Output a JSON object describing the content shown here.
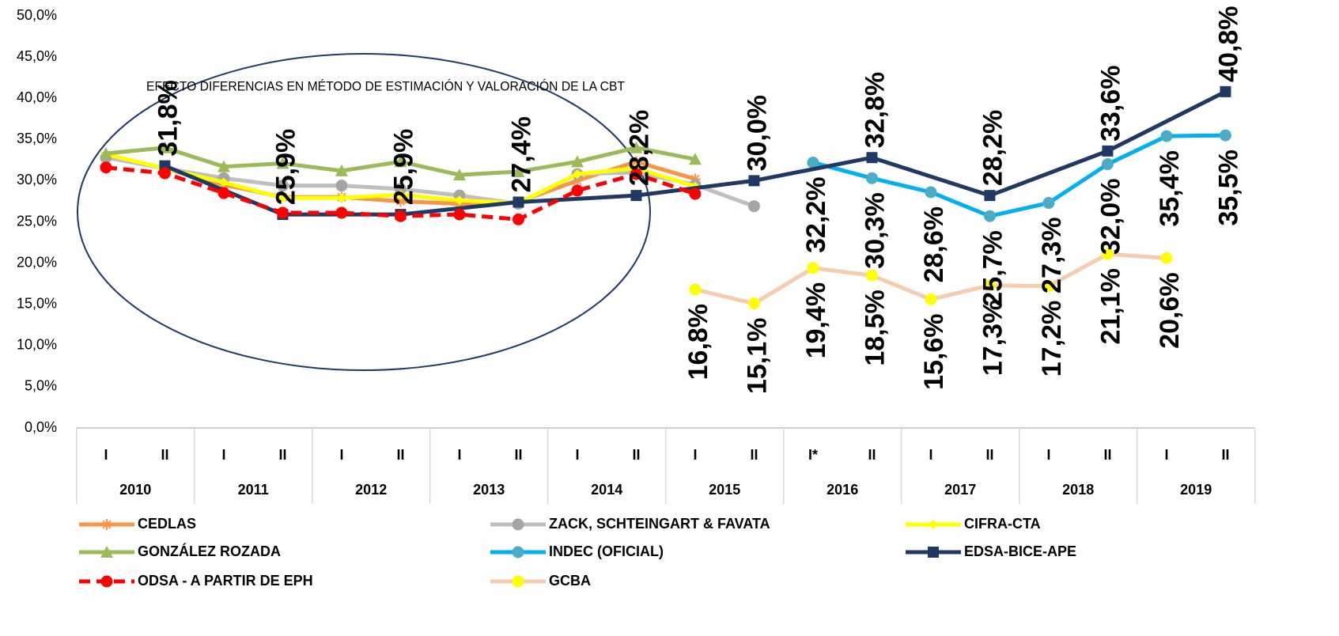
{
  "chart_data": {
    "type": "line",
    "annotation": "EFECTO DIFERENCIAS EN MÉTODO DE ESTIMACIÓN Y VALORACIÓN DE LA CBT",
    "categories": [
      "I",
      "II",
      "I",
      "II",
      "I",
      "II",
      "I",
      "II",
      "I",
      "II",
      "I",
      "II",
      "I*",
      "II",
      "I",
      "II",
      "I",
      "II",
      "I",
      "II"
    ],
    "groups": [
      "2010",
      "2011",
      "2012",
      "2013",
      "2014",
      "2015",
      "2016",
      "2017",
      "2018",
      "2019"
    ],
    "ylim": [
      0,
      50
    ],
    "yticks": [
      {
        "value": 0,
        "label": "0,0%"
      },
      {
        "value": 5,
        "label": "5,0%"
      },
      {
        "value": 10,
        "label": "10,0%"
      },
      {
        "value": 15,
        "label": "15,0%"
      },
      {
        "value": 20,
        "label": "20,0%"
      },
      {
        "value": 25,
        "label": "25,0%"
      },
      {
        "value": 30,
        "label": "30,0%"
      },
      {
        "value": 35,
        "label": "35,0%"
      },
      {
        "value": 40,
        "label": "40,0%"
      },
      {
        "value": 45,
        "label": "45,0%"
      },
      {
        "value": 50,
        "label": "50,0%"
      }
    ],
    "grid": false,
    "series": [
      {
        "name": "CEDLAS",
        "color": "#f79646",
        "marker": "asterisk",
        "marker_color": "#f79646",
        "values": [
          33.0,
          31.5,
          29.5,
          28.0,
          28.0,
          27.5,
          27.2,
          27.4,
          30.0,
          32.3,
          30.2,
          null,
          null,
          null,
          null,
          null,
          null,
          null,
          null,
          null
        ]
      },
      {
        "name": "ZACK, SCHTEINGART & FAVATA",
        "color": "#bfbfbf",
        "marker": "circle",
        "marker_color": "#a5a5a5",
        "values": [
          32.8,
          31.5,
          30.3,
          29.4,
          29.4,
          29.0,
          28.2,
          27.2,
          30.8,
          31.0,
          29.5,
          26.9,
          null,
          null,
          null,
          null,
          null,
          null,
          null,
          null
        ]
      },
      {
        "name": "CIFRA-CTA",
        "color": "#ffff00",
        "marker": "diamond",
        "marker_color": "#ffff00",
        "values": [
          33.2,
          31.5,
          29.8,
          27.9,
          27.9,
          28.3,
          27.6,
          27.3,
          30.8,
          31.5,
          29.3,
          null,
          null,
          null,
          null,
          null,
          null,
          null,
          null,
          null
        ]
      },
      {
        "name": "GONZÁLEZ ROZADA",
        "color": "#9bbb59",
        "marker": "triangle",
        "marker_color": "#9bbb59",
        "values": [
          33.3,
          34.0,
          31.7,
          32.1,
          31.2,
          32.3,
          30.7,
          31.1,
          32.3,
          34.0,
          32.6,
          null,
          null,
          null,
          null,
          null,
          null,
          null,
          null,
          null
        ]
      },
      {
        "name": "INDEC (OFICIAL)",
        "color": "#00b0f0",
        "marker": "circle",
        "marker_color": "#4bacc6",
        "values": [
          null,
          null,
          null,
          null,
          null,
          null,
          null,
          null,
          null,
          null,
          null,
          null,
          32.2,
          30.3,
          28.6,
          25.7,
          27.3,
          32.0,
          35.4,
          35.5
        ],
        "value_labels": [
          null,
          null,
          null,
          null,
          null,
          null,
          null,
          null,
          null,
          null,
          null,
          null,
          "32,2%",
          "30,3%",
          "28,6%",
          "25,7%",
          "27,3%",
          "32,0%",
          "35,4%",
          "35,5%"
        ],
        "label_position": "below"
      },
      {
        "name": "EDSA-BICE-APE",
        "color": "#1f3864",
        "marker": "square",
        "marker_color": "#1f3864",
        "connect_gaps": true,
        "values": [
          null,
          31.8,
          null,
          25.9,
          null,
          25.9,
          null,
          27.4,
          null,
          28.2,
          null,
          30.0,
          null,
          32.8,
          null,
          28.2,
          null,
          33.6,
          null,
          40.8
        ],
        "value_labels": [
          null,
          "31,8%",
          null,
          "25,9%",
          null,
          "25,9%",
          null,
          "27,4%",
          null,
          "28,2%",
          null,
          "30,0%",
          null,
          "32,8%",
          null,
          "28,2%",
          null,
          "33,6%",
          null,
          "40,8%"
        ],
        "label_position": "above"
      },
      {
        "name": "ODSA - A PARTIR DE EPH",
        "color": "#ff0000",
        "marker": "circle",
        "marker_color": "#ff0000",
        "dash": true,
        "values": [
          31.6,
          30.9,
          28.5,
          26.1,
          26.1,
          25.7,
          25.9,
          25.3,
          28.8,
          30.8,
          28.4,
          null,
          null,
          null,
          null,
          null,
          null,
          null,
          null,
          null
        ]
      },
      {
        "name": "GCBA",
        "color": "#f8cbad",
        "marker": "circle",
        "marker_color": "#ffff00",
        "values": [
          null,
          null,
          null,
          null,
          null,
          null,
          null,
          null,
          null,
          null,
          16.8,
          15.1,
          19.4,
          18.5,
          15.6,
          17.3,
          17.2,
          21.1,
          20.6,
          null
        ],
        "value_labels": [
          null,
          null,
          null,
          null,
          null,
          null,
          null,
          null,
          null,
          null,
          "16,8%",
          "15,1%",
          "19,4%",
          "18,5%",
          "15,6%",
          "17,3%",
          "17,2%",
          "21,1%",
          "20,6%",
          null
        ],
        "label_position": "below"
      }
    ]
  }
}
